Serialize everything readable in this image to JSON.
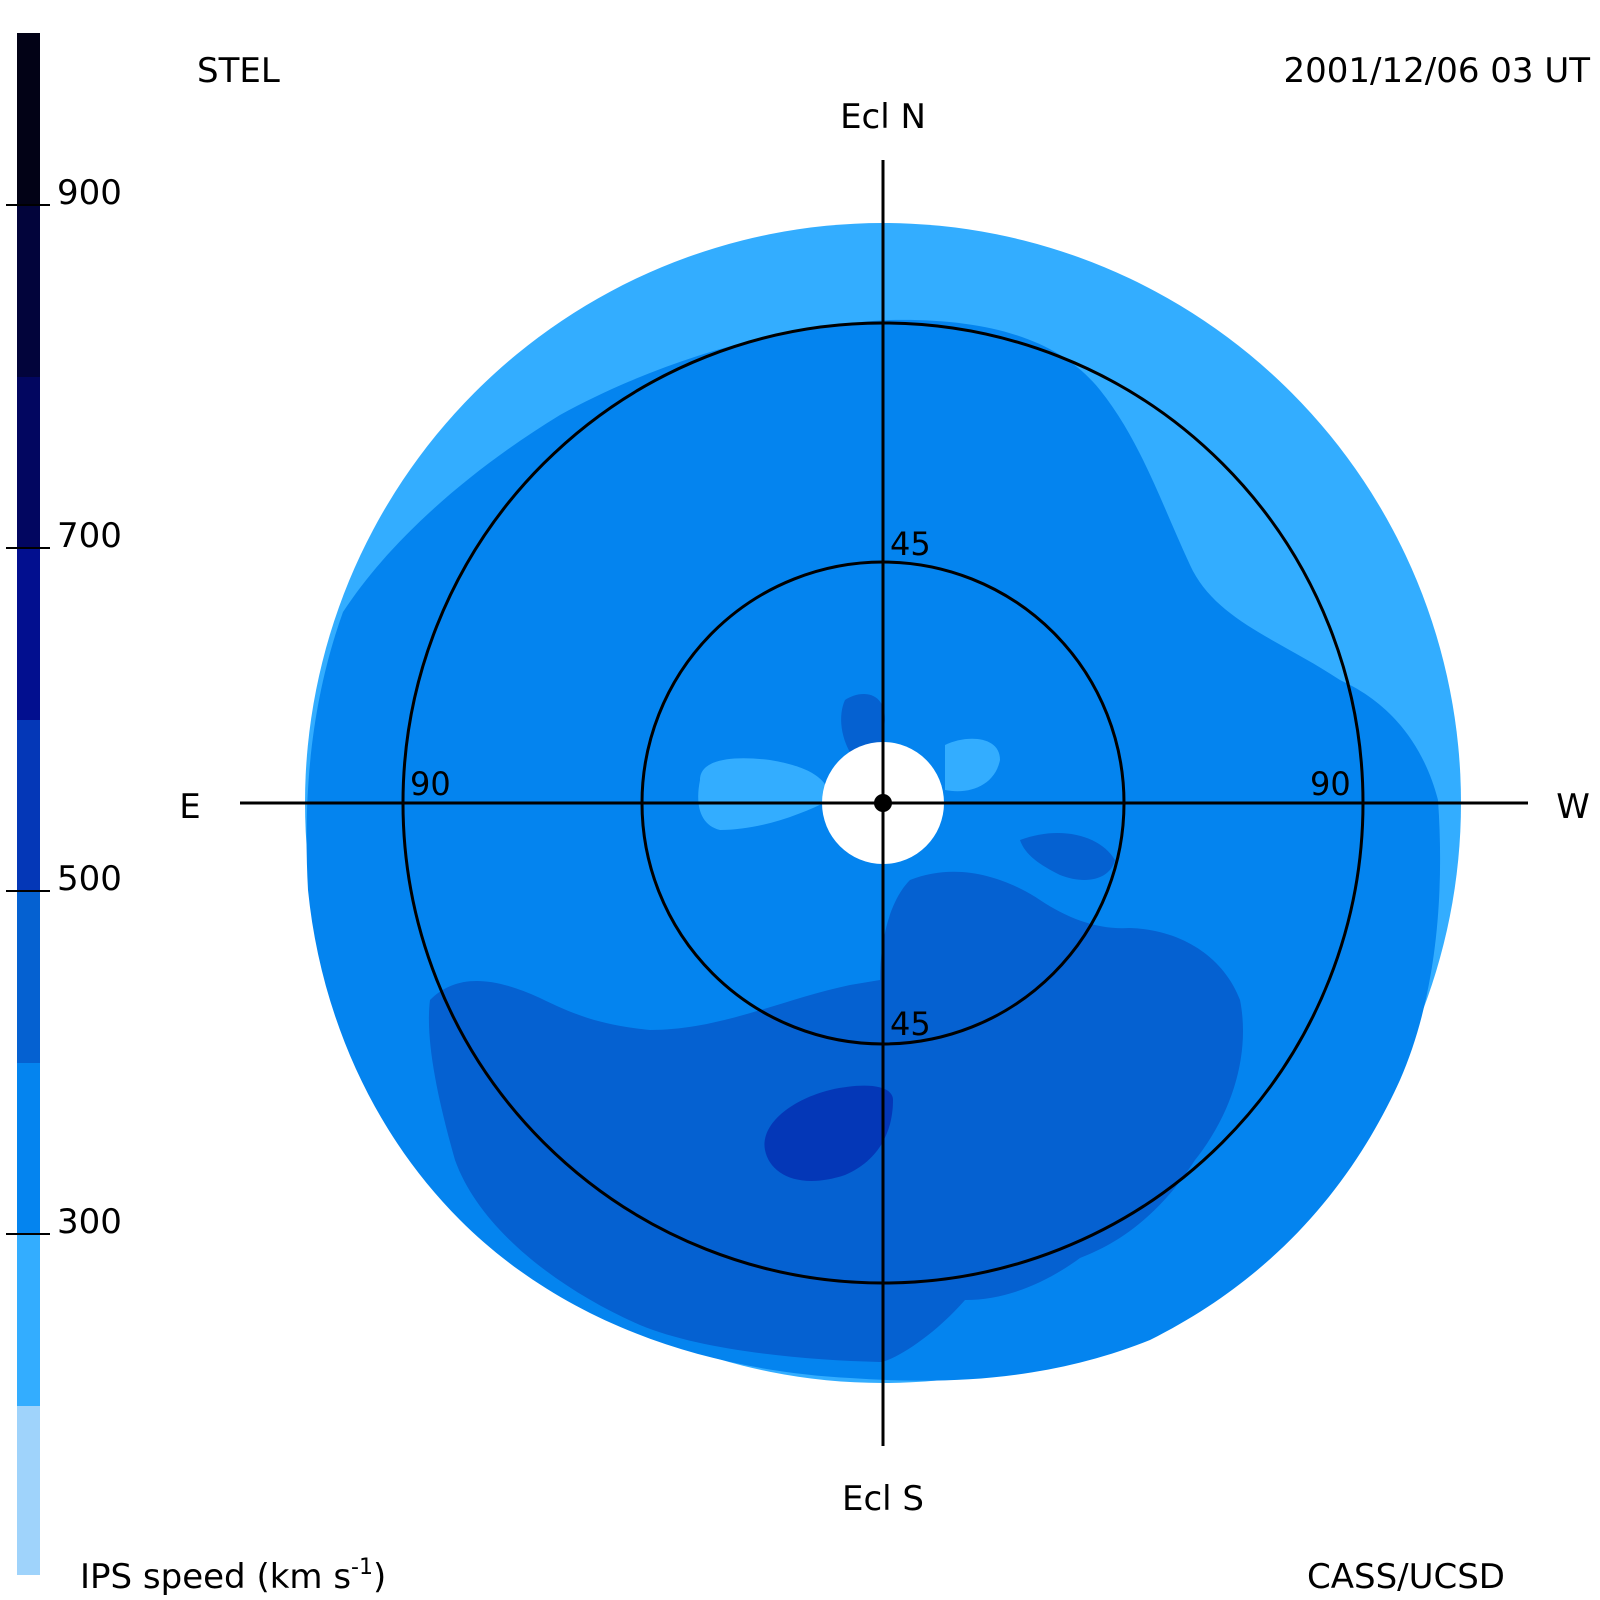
{
  "header": {
    "source": "STEL",
    "datetime": "2001/12/06 03 UT"
  },
  "compass": {
    "north": "Ecl N",
    "south": "Ecl S",
    "east": "E",
    "west": "W"
  },
  "rings": {
    "inner_label_top": "45",
    "inner_label_bottom": "45",
    "outer_label_left": "90",
    "outer_label_right": "90"
  },
  "colorbar": {
    "title": "IPS speed (km s",
    "title_sup": "-1",
    "title_close": ")",
    "ticks": [
      "900",
      "700",
      "500",
      "300"
    ],
    "levels": [
      "#9fd3fb",
      "#33adff",
      "#0484ef",
      "#0561d1",
      "#0437b7",
      "#020f8f",
      "#020660",
      "#02043b",
      "#020216"
    ]
  },
  "footer": {
    "credit": "CASS/UCSD"
  },
  "map_colors": {
    "slow_band": "#33adff",
    "background_speed": "#0484ef",
    "moderate_speed": "#0561d1",
    "fast_speed": "#0437b7",
    "occulting_disk": "#ffffff",
    "lines": "#000000"
  }
}
